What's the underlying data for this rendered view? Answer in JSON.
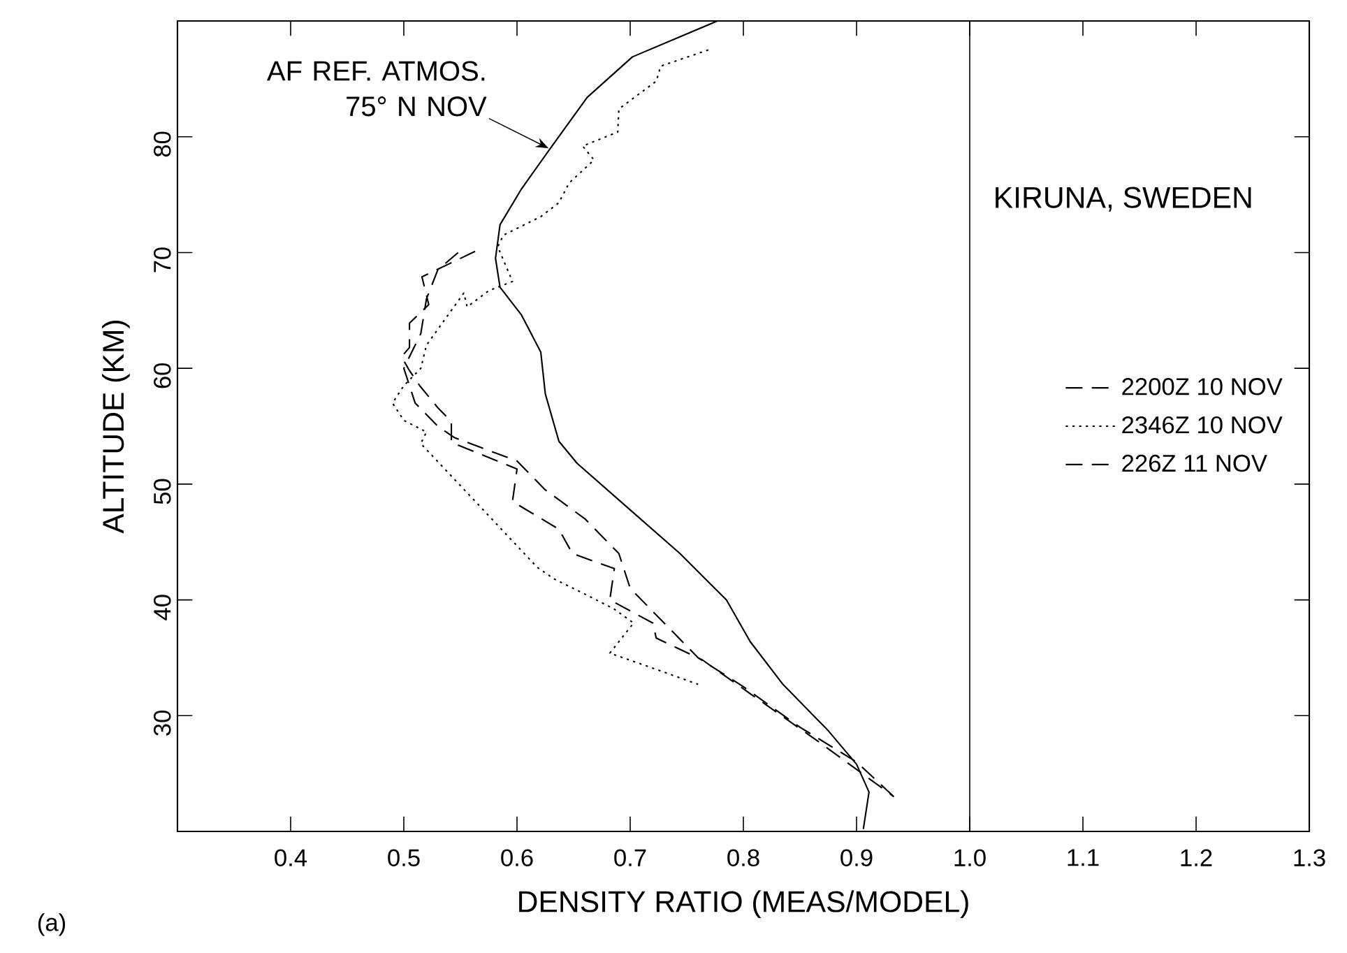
{
  "chart_data": {
    "type": "line",
    "xlabel": "DENSITY RATIO   (MEAS/MODEL)",
    "ylabel": "ALTITUDE   (KM)",
    "xlim": [
      0.3,
      1.3
    ],
    "ylim": [
      20,
      90
    ],
    "xticks": [
      0.4,
      0.5,
      0.6,
      0.7,
      0.8,
      0.9,
      {
        "value": 1.0,
        "label": "1.0"
      },
      1.1,
      1.2,
      1.3
    ],
    "yticks": [
      30,
      40,
      50,
      60,
      70,
      80
    ],
    "legend": "right",
    "grid": false,
    "marker": "none",
    "ref_lines": [
      {
        "axis": "x",
        "value": 1.0,
        "color": "#000000"
      }
    ],
    "annotations": [
      "KIRUNA, SWEDEN",
      {
        "text": "AF REF. ATMOS. 75° N NOV",
        "x": 0.628,
        "y": 79
      },
      "(a)"
    ],
    "series": [
      {
        "name": "2200Z 10 NOV",
        "color": "#000000",
        "line_style": "dashed",
        "x": [
          0.563,
          0.516,
          0.522,
          0.505,
          0.505,
          0.498,
          0.505,
          0.514,
          0.53,
          0.542,
          0.542,
          0.6,
          0.596,
          0.637,
          0.649,
          0.686,
          0.682,
          0.72,
          0.723,
          0.764,
          0.806,
          0.87,
          0.933
        ],
        "values": [
          70.1,
          67.9,
          65.5,
          63.9,
          61.8,
          61.0,
          59.8,
          58.5,
          56.6,
          55.4,
          53.6,
          51.3,
          48.5,
          46.1,
          44.0,
          42.7,
          40.0,
          38.0,
          36.7,
          34.8,
          31.9,
          27.5,
          23.0
        ]
      },
      {
        "name": "2346Z 10 NOV",
        "color": "#000000",
        "line_style": "dotted",
        "x": [
          0.769,
          0.727,
          0.723,
          0.69,
          0.689,
          0.658,
          0.668,
          0.646,
          0.637,
          0.621,
          0.588,
          0.583,
          0.596,
          0.575,
          0.556,
          0.553,
          0.52,
          0.515,
          0.5,
          0.49,
          0.5,
          0.52,
          0.515,
          0.618,
          0.633,
          0.662,
          0.686,
          0.703,
          0.682,
          0.723,
          0.76
        ],
        "values": [
          87.5,
          86.1,
          84.8,
          82.4,
          80.4,
          79.2,
          78.0,
          76.0,
          74.3,
          73.1,
          71.5,
          70.5,
          67.5,
          66.7,
          65.3,
          66.5,
          62,
          60,
          58.5,
          57,
          55.5,
          54.5,
          53.5,
          42.8,
          41.8,
          40.4,
          39.2,
          38.0,
          35.4,
          34.0,
          32.7
        ]
      },
      {
        "name": "226Z 11 NOV",
        "color": "#000000",
        "line_style": "dashed",
        "x": [
          0.548,
          0.53,
          0.52,
          0.515,
          0.5,
          0.51,
          0.53,
          0.545,
          0.6,
          0.625,
          0.66,
          0.69,
          0.7,
          0.73,
          0.76,
          0.8,
          0.85,
          0.9,
          0.933
        ],
        "values": [
          70.0,
          68.5,
          66,
          63,
          60,
          57,
          55,
          54,
          52,
          49.5,
          47,
          44,
          41,
          38,
          35,
          32.5,
          29,
          26,
          23.0
        ]
      },
      {
        "color": "#000000",
        "line_style": "solid",
        "x": [
          0.777,
          0.702,
          0.662,
          0.628,
          0.604,
          0.585,
          0.581,
          0.585,
          0.604,
          0.621,
          0.625,
          0.637,
          0.653,
          0.702,
          0.744,
          0.785,
          0.806,
          0.835,
          0.875,
          0.9,
          0.911,
          0.906
        ],
        "values": [
          90,
          86.9,
          83.4,
          78.8,
          75.5,
          72.4,
          69.5,
          67.0,
          64.6,
          61.4,
          57.8,
          53.7,
          51.8,
          47.6,
          44.0,
          40.0,
          36.4,
          32.7,
          28.7,
          25.8,
          23.4,
          20.2
        ]
      }
    ]
  }
}
